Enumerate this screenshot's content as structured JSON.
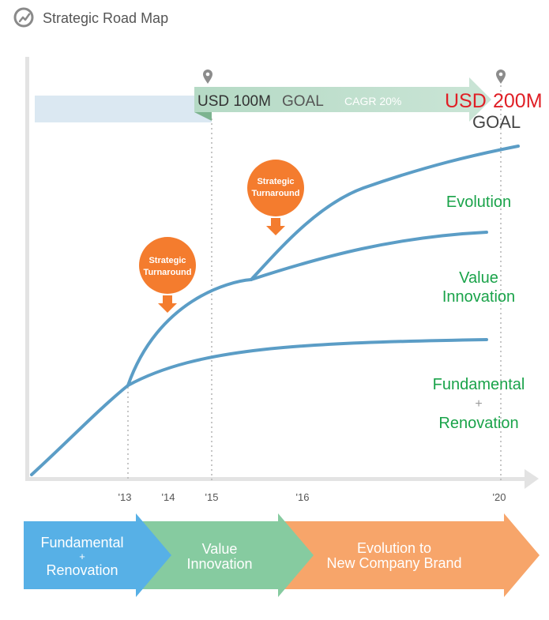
{
  "header": {
    "title": "Strategic Road Map",
    "icon": "compass-chart-icon"
  },
  "goals": {
    "first_amount": "USD 100M",
    "first_label": "GOAL",
    "cagr": "CAGR 20%",
    "final_currency": "USD",
    "final_amount": "200M",
    "final_label": "GOAL"
  },
  "turnarounds": [
    {
      "line1": "Strategic",
      "line2": "Turnaround"
    },
    {
      "line1": "Strategic",
      "line2": "Turnaround"
    }
  ],
  "curve_labels": {
    "evolution": "Evolution",
    "value_innovation": [
      "Value",
      "Innovation"
    ],
    "fundamental": [
      "Fundamental",
      "+",
      "Renovation"
    ]
  },
  "x_ticks": [
    "'13",
    "'14",
    "'15",
    "'16",
    "'20"
  ],
  "stages": [
    {
      "lines": [
        "Fundamental",
        "+",
        "Renovation"
      ]
    },
    {
      "lines": [
        "Value",
        "Innovation"
      ]
    },
    {
      "lines": [
        "Evolution to",
        "New Company Brand"
      ]
    }
  ],
  "colors": {
    "curve": "#5b9dc6",
    "green_text": "#1aa34a",
    "red_text": "#e01f26",
    "orange": "#f47c2e",
    "stage1": "#57b0e6",
    "stage2": "#86cba0",
    "stage3": "#f7a56a",
    "goal_band": "#b9dcc9"
  }
}
